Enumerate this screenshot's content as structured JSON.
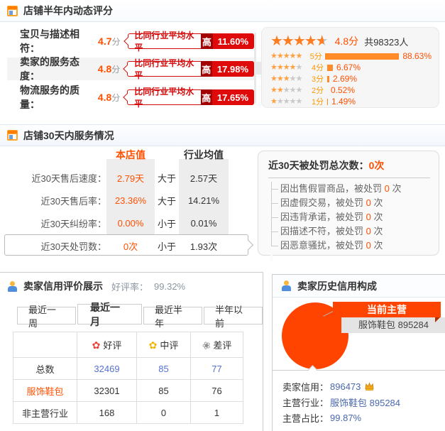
{
  "colors": {
    "accent_orange": "#ff5000",
    "badge_red": "#d50c0c",
    "dark_red": "#a40000",
    "pie_orange": "#ff4400",
    "link_blue": "#5571d2"
  },
  "section1": {
    "title": "店铺半年内动态评分",
    "rows": [
      {
        "label": "宝贝与描述相符：",
        "score": "4.7",
        "unit": "分",
        "compare": "比同行业平均水平",
        "dir": "高",
        "pct": "11.60%"
      },
      {
        "label": "卖家的服务态度：",
        "score": "4.8",
        "unit": "分",
        "compare": "比同行业平均水平",
        "dir": "高",
        "pct": "17.98%"
      },
      {
        "label": "物流服务的质量：",
        "score": "4.8",
        "unit": "分",
        "compare": "比同行业平均水平",
        "dir": "高",
        "pct": "17.65%"
      }
    ],
    "summary": {
      "score": "4.8分",
      "count": "共98323人",
      "dist": [
        {
          "stars": 5,
          "label": "5分",
          "pct": "88.63%",
          "pct_num": 88.63
        },
        {
          "stars": 4,
          "label": "4分",
          "pct": "6.67%",
          "pct_num": 6.67
        },
        {
          "stars": 3,
          "label": "3分",
          "pct": "2.69%",
          "pct_num": 2.69
        },
        {
          "stars": 2,
          "label": "2分",
          "pct": "0.52%",
          "pct_num": 0.52
        },
        {
          "stars": 1,
          "label": "1分",
          "pct": "1.49%",
          "pct_num": 1.49
        }
      ]
    }
  },
  "section2": {
    "title": "店铺30天内服务情况",
    "col_shop": "本店值",
    "col_industry": "行业均值",
    "rows": [
      {
        "label": "近30天售后速度：",
        "shop": "2.79天",
        "cmp": "大于",
        "industry": "2.57天"
      },
      {
        "label": "近30天售后率：",
        "shop": "23.36%",
        "cmp": "大于",
        "industry": "14.21%"
      },
      {
        "label": "近30天纠纷率：",
        "shop": "0.00%",
        "cmp": "小于",
        "industry": "0.01%"
      },
      {
        "label": "近30天处罚数：",
        "shop": "0次",
        "cmp": "小于",
        "industry": "1.93次"
      }
    ],
    "penalty_box": {
      "title": "近30天被处罚总次数：",
      "total": "0次",
      "items": [
        {
          "text": "因出售假冒商品，被处罚",
          "count": "0",
          "suffix": "次"
        },
        {
          "text": "因虚假交易，被处罚",
          "count": "0",
          "suffix": "次"
        },
        {
          "text": "因违背承诺，被处罚",
          "count": "0",
          "suffix": "次"
        },
        {
          "text": "因描述不符，被处罚",
          "count": "0",
          "suffix": "次"
        },
        {
          "text": "因恶意骚扰，被处罚",
          "count": "0",
          "suffix": "次"
        }
      ]
    }
  },
  "section3": {
    "title": "卖家信用评价展示",
    "rate_label": "好评率：",
    "rate": "99.32%",
    "tabs": [
      {
        "label": "最近一周",
        "active": false
      },
      {
        "label": "最近一月",
        "active": true
      },
      {
        "label": "最近半年",
        "active": false
      },
      {
        "label": "半年以前",
        "active": false
      }
    ],
    "table": {
      "headers": [
        "好评",
        "中评",
        "差评"
      ],
      "rows": [
        {
          "label": "总数",
          "values": [
            "32469",
            "85",
            "77"
          ]
        },
        {
          "label": "服饰鞋包",
          "values": [
            "32301",
            "85",
            "76"
          ]
        },
        {
          "label": "非主营行业",
          "values": [
            "168",
            "0",
            "1"
          ]
        }
      ]
    }
  },
  "section4": {
    "title": "卖家历史信用构成",
    "callout_title": "当前主营",
    "callout_value": "服饰鞋包  895284",
    "stats": [
      {
        "label": "卖家信用：",
        "value": "896473"
      },
      {
        "label": "主营行业：",
        "value": "服饰鞋包 895284"
      },
      {
        "label": "主营占比：",
        "value": "99.87%"
      }
    ]
  }
}
